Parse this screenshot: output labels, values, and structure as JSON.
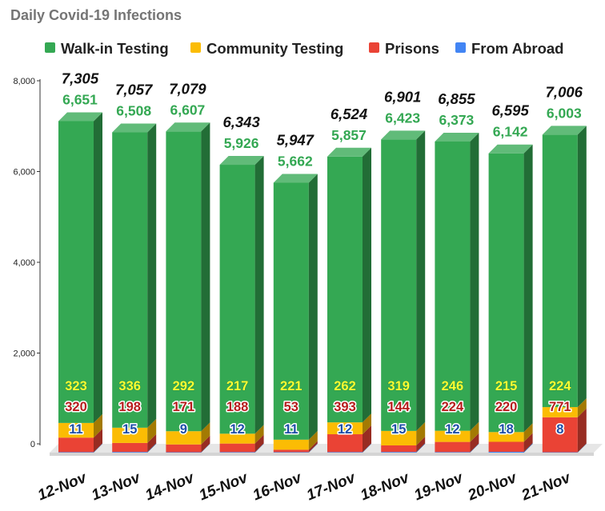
{
  "chart_data": {
    "type": "bar",
    "stacked": true,
    "style": "3d",
    "title": "Daily Covid-19 Infections",
    "legend_position": "top",
    "grid": false,
    "categories": [
      "12-Nov",
      "13-Nov",
      "14-Nov",
      "15-Nov",
      "16-Nov",
      "17-Nov",
      "18-Nov",
      "19-Nov",
      "20-Nov",
      "21-Nov"
    ],
    "series": [
      {
        "name": "Walk-in Testing",
        "color": "#34a853",
        "values": [
          6651,
          6508,
          6607,
          5926,
          5662,
          5857,
          6423,
          6373,
          6142,
          6003
        ]
      },
      {
        "name": "Community Testing",
        "color": "#fbbc04",
        "values": [
          323,
          336,
          292,
          217,
          221,
          262,
          319,
          246,
          215,
          224
        ]
      },
      {
        "name": "Prisons",
        "color": "#ea4335",
        "values": [
          320,
          198,
          171,
          188,
          53,
          393,
          144,
          224,
          220,
          771
        ]
      },
      {
        "name": "From Abroad",
        "color": "#4285f4",
        "values": [
          11,
          15,
          9,
          12,
          11,
          12,
          15,
          12,
          18,
          8
        ]
      }
    ],
    "totals": [
      7305,
      7057,
      7079,
      6343,
      5947,
      6524,
      6901,
      6855,
      6595,
      7006
    ],
    "total_labels": [
      "7,305",
      "7,057",
      "7,079",
      "6,343",
      "5,947",
      "6,524",
      "6,901",
      "6,855",
      "6,595",
      "7,006"
    ],
    "walkin_labels": [
      "6,651",
      "6,508",
      "6,607",
      "5,926",
      "5,662",
      "5,857",
      "6,423",
      "6,373",
      "6,142",
      "6,003"
    ],
    "community_labels": [
      "323",
      "336",
      "292",
      "217",
      "221",
      "262",
      "319",
      "246",
      "215",
      "224"
    ],
    "prisons_labels": [
      "320",
      "198",
      "171",
      "188",
      "53",
      "393",
      "144",
      "224",
      "220",
      "771"
    ],
    "abroad_labels": [
      "11",
      "15",
      "9",
      "12",
      "11",
      "12",
      "15",
      "12",
      "18",
      "8"
    ],
    "ylim": [
      0,
      8000
    ],
    "yticks": [
      0,
      2000,
      4000,
      6000,
      8000
    ],
    "ytick_labels": [
      "0",
      "2,000",
      "4,000",
      "6,000",
      "8,000"
    ]
  }
}
